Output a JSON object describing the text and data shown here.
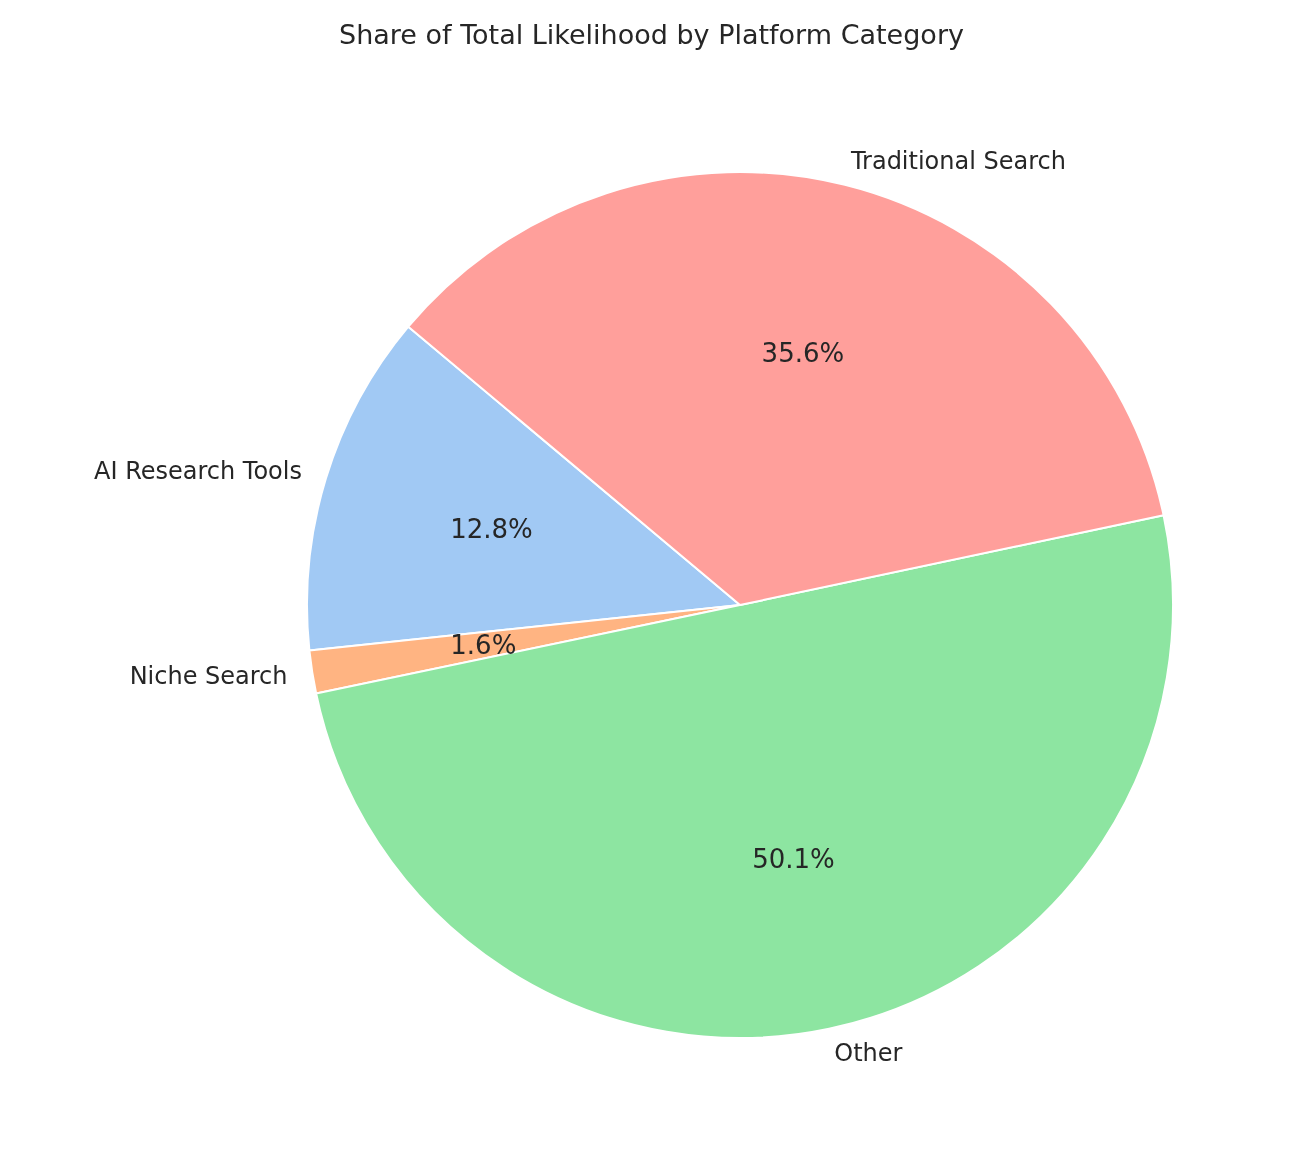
{
  "chart_data": {
    "type": "pie",
    "title": "Share of Total Likelihood by Platform Category",
    "categories": [
      "AI Research Tools",
      "Niche Search",
      "Other",
      "Traditional Search"
    ],
    "values": [
      12.8,
      1.6,
      50.1,
      35.6
    ],
    "colors": [
      "#a1c9f4",
      "#ffb482",
      "#8de5a1",
      "#ff9f9b"
    ],
    "value_labels": [
      "12.8%",
      "1.6%",
      "50.1%",
      "35.6%"
    ],
    "legend": false
  }
}
